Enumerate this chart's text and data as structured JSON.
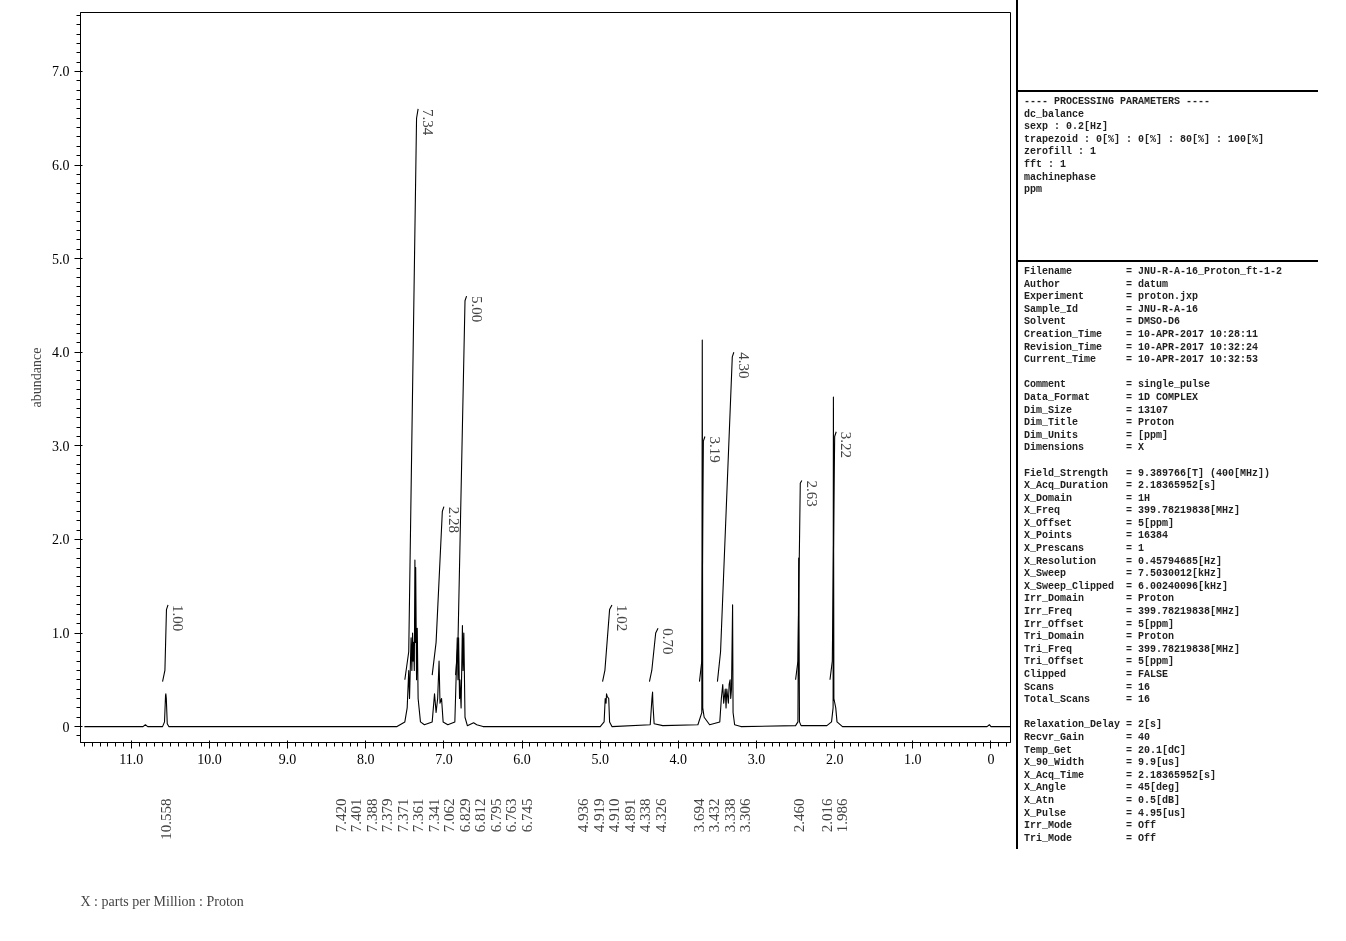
{
  "chart_data": {
    "type": "line",
    "ylabel": "abundance",
    "xlim": [
      11.65,
      -0.25
    ],
    "ylim": [
      -0.17,
      7.63
    ],
    "xticks": [
      {
        "value": 11,
        "label": "11.0"
      },
      {
        "value": 10,
        "label": "10.0"
      },
      {
        "value": 9,
        "label": "9.0"
      },
      {
        "value": 8,
        "label": "8.0"
      },
      {
        "value": 7,
        "label": "7.0"
      },
      {
        "value": 6,
        "label": "6.0"
      },
      {
        "value": 5,
        "label": "5.0"
      },
      {
        "value": 4,
        "label": "4.0"
      },
      {
        "value": 3,
        "label": "3.0"
      },
      {
        "value": 2,
        "label": "2.0"
      },
      {
        "value": 1,
        "label": "1.0"
      },
      0
    ],
    "yticks": [
      0,
      {
        "value": 1,
        "label": "1.0"
      },
      {
        "value": 2,
        "label": "2.0"
      },
      {
        "value": 3,
        "label": "3.0"
      },
      {
        "value": 4,
        "label": "4.0"
      },
      {
        "value": 5,
        "label": "5.0"
      },
      {
        "value": 6,
        "label": "6.0"
      },
      {
        "value": 7,
        "label": "7.0"
      }
    ],
    "series": [
      {
        "color": "#000000",
        "x": [
          11.6,
          10.85,
          10.82,
          10.79,
          10.6,
          10.575,
          10.562,
          10.558,
          10.552,
          10.54,
          10.52,
          7.6,
          7.5,
          7.47,
          7.45,
          7.44,
          7.42,
          7.41,
          7.401,
          7.395,
          7.388,
          7.379,
          7.371,
          7.365,
          7.361,
          7.35,
          7.341,
          7.33,
          7.3,
          7.25,
          7.15,
          7.12,
          7.1,
          7.08,
          7.062,
          7.05,
          7.03,
          7.01,
          6.95,
          6.86,
          6.829,
          6.82,
          6.812,
          6.8,
          6.795,
          6.78,
          6.763,
          6.755,
          6.745,
          6.73,
          6.7,
          6.62,
          6.58,
          6.5,
          5.0,
          4.95,
          4.936,
          4.925,
          4.919,
          4.91,
          4.891,
          4.88,
          4.85,
          4.36,
          4.338,
          4.33,
          4.326,
          4.31,
          4.2,
          3.75,
          3.7,
          3.694,
          3.688,
          3.67,
          3.6,
          3.47,
          3.45,
          3.432,
          3.42,
          3.4,
          3.39,
          3.38,
          3.36,
          3.35,
          3.338,
          3.33,
          3.32,
          3.306,
          3.3,
          3.28,
          3.2,
          2.5,
          2.47,
          2.46,
          2.45,
          2.43,
          2.1,
          2.04,
          2.02,
          2.016,
          2.01,
          1.986,
          1.97,
          1.9,
          0.05,
          0.02,
          0.0,
          -0.25
        ],
        "values": [
          0,
          0,
          0.02,
          0,
          0,
          0.05,
          0.33,
          0.35,
          0.3,
          0.03,
          0,
          0,
          0.05,
          0.2,
          0.6,
          0.3,
          0.95,
          0.6,
          1.0,
          0.7,
          0.9,
          0.6,
          1.78,
          0.9,
          1.7,
          0.5,
          1.05,
          0.3,
          0.05,
          0.02,
          0.05,
          0.35,
          0.15,
          0.3,
          0.7,
          0.25,
          0.3,
          0.05,
          0.02,
          0.05,
          0.95,
          0.5,
          0.95,
          0.3,
          0.5,
          0.2,
          1.08,
          0.6,
          1.0,
          0.1,
          0.01,
          0.04,
          0.02,
          0,
          0,
          0.05,
          0.3,
          0.25,
          0.35,
          0.32,
          0.3,
          0.05,
          0,
          0.02,
          0.3,
          0.37,
          0.25,
          0.03,
          0.01,
          0.02,
          0.15,
          4.13,
          0.2,
          0.1,
          0.02,
          0.05,
          0.3,
          0.45,
          0.25,
          0.4,
          0.2,
          0.4,
          0.25,
          0.45,
          0.5,
          0.3,
          0.4,
          1.3,
          0.15,
          0.02,
          0,
          0.01,
          0.05,
          1.8,
          0.05,
          0.01,
          0.01,
          0.05,
          0.2,
          3.52,
          0.3,
          0.2,
          0.05,
          0,
          0,
          0.02,
          0,
          0
        ]
      },
      {
        "color": "#000000",
        "x": [
          10.6,
          10.57,
          10.55,
          10.53
        ],
        "values": [
          0.48,
          0.6,
          1.25,
          1.3
        ]
      },
      {
        "color": "#000000",
        "x": [
          7.5,
          7.45,
          7.35,
          7.33
        ],
        "values": [
          0.5,
          0.8,
          6.5,
          6.6
        ]
      },
      {
        "color": "#000000",
        "x": [
          7.15,
          7.1,
          7.02,
          7.0
        ],
        "values": [
          0.55,
          0.9,
          2.3,
          2.35
        ]
      },
      {
        "color": "#000000",
        "x": [
          6.85,
          6.82,
          6.73,
          6.71
        ],
        "values": [
          0.55,
          0.9,
          4.55,
          4.6
        ]
      },
      {
        "color": "#000000",
        "x": [
          4.97,
          4.94,
          4.88,
          4.85
        ],
        "values": [
          0.48,
          0.6,
          1.25,
          1.3
        ]
      },
      {
        "color": "#000000",
        "x": [
          4.37,
          4.34,
          4.29,
          4.26
        ],
        "values": [
          0.48,
          0.6,
          1.0,
          1.05
        ]
      },
      {
        "color": "#000000",
        "x": [
          3.73,
          3.7,
          3.68,
          3.66
        ],
        "values": [
          0.48,
          0.7,
          3.05,
          3.1
        ]
      },
      {
        "color": "#000000",
        "x": [
          3.5,
          3.46,
          3.31,
          3.29
        ],
        "values": [
          0.48,
          0.8,
          3.95,
          4.0
        ]
      },
      {
        "color": "#000000",
        "x": [
          2.5,
          2.47,
          2.44,
          2.42
        ],
        "values": [
          0.5,
          0.7,
          2.6,
          2.63
        ]
      },
      {
        "color": "#000000",
        "x": [
          2.06,
          2.03,
          2.0,
          1.98
        ],
        "values": [
          0.5,
          0.7,
          3.1,
          3.15
        ]
      }
    ],
    "annotations": [
      {
        "text": "1.00",
        "x": 10.53,
        "y": 1.3
      },
      {
        "text": "7.34",
        "x": 7.33,
        "y": 6.6
      },
      {
        "text": "2.28",
        "x": 7.0,
        "y": 2.35
      },
      {
        "text": "5.00",
        "x": 6.71,
        "y": 4.6
      },
      {
        "text": "1.02",
        "x": 4.85,
        "y": 1.3
      },
      {
        "text": "0.70",
        "x": 4.26,
        "y": 1.05
      },
      {
        "text": "3.19",
        "x": 3.66,
        "y": 3.1
      },
      {
        "text": "4.30",
        "x": 3.29,
        "y": 4.0
      },
      {
        "text": "2.63",
        "x": 2.42,
        "y": 2.63
      },
      {
        "text": "3.22",
        "x": 1.98,
        "y": 3.15
      },
      "X : parts per Million : Proton",
      "10.558",
      "7.420",
      "7.401",
      "7.388",
      "7.379",
      "7.371",
      "7.361",
      "7.341",
      "7.062",
      "6.829",
      "6.812",
      "6.795",
      "6.763",
      "6.745",
      "4.936",
      "4.919",
      "4.910",
      "4.891",
      "4.338",
      "4.326",
      "3.694",
      "3.432",
      "3.338",
      "3.306",
      "2.460",
      "2.016",
      "1.986",
      "---- PROCESSING PARAMETERS ----",
      "dc_balance",
      "sexp : 0.2[Hz]",
      "trapezoid : 0[%] : 0[%] : 80[%] : 100[%]",
      "zerofill : 1",
      "fft : 1",
      "machinephase",
      "ppm",
      "Filename = JNU-R-A-16_Proton_ft-1-2",
      "Author = datum",
      "Experiment = proton.jxp",
      "Sample_Id = JNU-R-A-16",
      "Solvent = DMSO-D6",
      "Creation_Time = 10-APR-2017 10:28:11",
      "Revision_Time = 10-APR-2017 10:32:24",
      "Current_Time = 10-APR-2017 10:32:53",
      "Comment = single_pulse",
      "Data_Format = 1D COMPLEX",
      "Dim_Size = 13107",
      "Dim_Title = Proton",
      "Dim_Units = [ppm]",
      "Dimensions = X",
      "Field_Strength = 9.389766[T] (400[MHz])",
      "X_Acq_Duration = 2.18365952[s]",
      "X_Domain = 1H",
      "X_Freq = 399.78219838[MHz]",
      "X_Offset = 5[ppm]",
      "X_Points = 16384",
      "X_Prescans = 1",
      "X_Resolution = 0.45794685[Hz]",
      "X_Sweep = 7.5030012[kHz]",
      "X_Sweep_Clipped = 6.00240096[kHz]",
      "Irr_Domain = Proton",
      "Irr_Freq = 399.78219838[MHz]",
      "Irr_Offset = 5[ppm]",
      "Tri_Domain = Proton",
      "Tri_Freq = 399.78219838[MHz]",
      "Tri_Offset = 5[ppm]",
      "Clipped = FALSE",
      "Scans = 16",
      "Total_Scans = 16",
      "Relaxation_Delay = 2[s]",
      "Recvr_Gain = 40",
      "Temp_Get = 20.1[dC]",
      "X_90_Width = 9.9[us]",
      "X_Acq_Time = 2.18365952[s]",
      "X_Angle = 45[deg]",
      "X_Atn = 0.5[dB]",
      "X_Pulse = 4.95[us]",
      "Irr_Mode = Off",
      "Tri_Mode = Off"
    ]
  }
}
